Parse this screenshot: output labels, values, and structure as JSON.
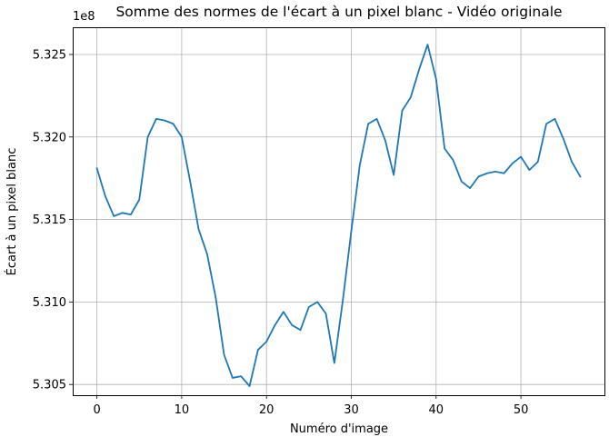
{
  "chart_data": {
    "type": "line",
    "title": "Somme des normes de l'écart à un pixel blanc - Vidéo originale",
    "xlabel": "Numéro d'image",
    "ylabel": "Écart à un pixel blanc",
    "offset_label": "1e8",
    "xlim": [
      -2.85,
      59.85
    ],
    "ylim": [
      5.30435,
      5.32665
    ],
    "x_ticks": [
      0,
      10,
      20,
      30,
      40,
      50
    ],
    "x_tick_labels": [
      "0",
      "10",
      "20",
      "30",
      "40",
      "50"
    ],
    "y_ticks": [
      5.305,
      5.31,
      5.315,
      5.32,
      5.325
    ],
    "y_tick_labels": [
      "5.305",
      "5.310",
      "5.315",
      "5.320",
      "5.325"
    ],
    "grid": true,
    "line_color": "#1f77b4",
    "series": [
      {
        "x": [
          0,
          1,
          2,
          3,
          4,
          5,
          6,
          7,
          8,
          9,
          10,
          11,
          12,
          13,
          14,
          15,
          16,
          17,
          18,
          19,
          20,
          21,
          22,
          23,
          24,
          25,
          26,
          27,
          28,
          29,
          30,
          31,
          32,
          33,
          34,
          35,
          36,
          37,
          38,
          39,
          40,
          41,
          42,
          43,
          44,
          45,
          46,
          47,
          48,
          49,
          50,
          51,
          52,
          53,
          54,
          55,
          56,
          57
        ],
        "values": [
          5.3181,
          5.3164,
          5.3152,
          5.3154,
          5.3153,
          5.3162,
          5.32,
          5.3211,
          5.321,
          5.3208,
          5.32,
          5.3173,
          5.3144,
          5.3129,
          5.3103,
          5.3068,
          5.3054,
          5.3055,
          5.3049,
          5.3071,
          5.3076,
          5.3086,
          5.3094,
          5.3086,
          5.3083,
          5.3097,
          5.31,
          5.3093,
          5.3063,
          5.3101,
          5.3143,
          5.3183,
          5.3208,
          5.3211,
          5.3198,
          5.3177,
          5.3216,
          5.3224,
          5.3241,
          5.3256,
          5.3235,
          5.3193,
          5.3186,
          5.3173,
          5.3169,
          5.3176,
          5.3178,
          5.3179,
          5.3178,
          5.3184,
          5.3188,
          5.318,
          5.3185,
          5.3208,
          5.3211,
          5.3199,
          5.3185,
          5.3176
        ]
      }
    ]
  }
}
